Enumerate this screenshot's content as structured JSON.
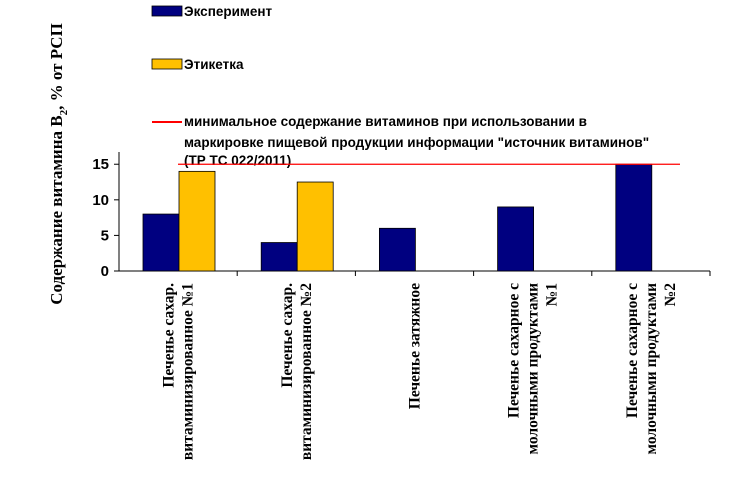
{
  "chart_data": {
    "type": "bar",
    "title": "",
    "ylabel": {
      "prefix": "Содержание витамина B",
      "subscript": "2",
      "suffix": ", % от РСП"
    },
    "xlabel": "",
    "ylim": [
      0,
      17
    ],
    "yticks": [
      "0",
      "5",
      "10",
      "15"
    ],
    "categories": [
      [
        "Печенье сахар.",
        "витаминизированное №1"
      ],
      [
        "Печенье сахар.",
        "витаминизированное №2"
      ],
      [
        "Печенье затяжное"
      ],
      [
        "Печенье сахарное с",
        "молочными продуктами",
        "№1"
      ],
      [
        "Печенье сахарное с",
        "молочными продуктами",
        "№2"
      ]
    ],
    "series": [
      {
        "name": "Эксперимент",
        "color": "#000080",
        "values": [
          8,
          4,
          6,
          9,
          15
        ]
      },
      {
        "name": "Этикетка",
        "color": "#FFC000",
        "values": [
          14,
          12.5,
          null,
          null,
          null
        ]
      }
    ],
    "reference_line": {
      "value": 15,
      "color": "#FF0000",
      "label": [
        "минимальное содержание витаминов при использовании в",
        "маркировке пищевой продукции информации \"источник витаминов\"",
        "(ТР ТС 022/2011)"
      ]
    },
    "legend": {
      "placement": "top",
      "items": [
        {
          "label": "Эксперимент",
          "kind": "swatch",
          "color": "#000080"
        },
        {
          "label": "Этикетка",
          "kind": "swatch",
          "color": "#FFC000"
        },
        {
          "label": "минимальное содержание витаминов при использовании в",
          "kind": "line",
          "color": "#FF0000"
        }
      ]
    }
  }
}
